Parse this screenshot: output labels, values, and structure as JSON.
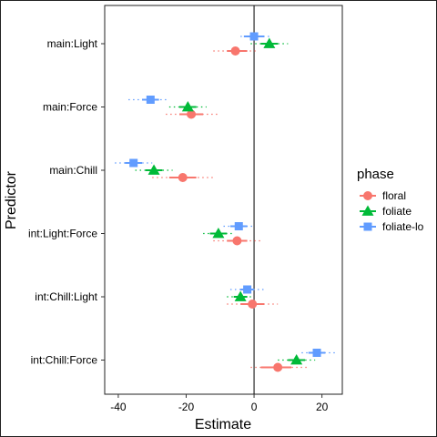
{
  "chart_data": {
    "type": "scatter",
    "subtype": "coefficient-plot-with-error-bars",
    "xlabel": "Estimate",
    "ylabel": "Predictor",
    "xlim": [
      -44,
      26
    ],
    "x_ticks": [
      -40,
      -20,
      0,
      20
    ],
    "x_tick_labels": [
      "-40",
      "-20",
      "0",
      "20"
    ],
    "reference_line_x": 0,
    "grid": false,
    "legend_title": "phase",
    "legend_position": "right",
    "categories": [
      "main:Light",
      "main:Force",
      "main:Chill",
      "int:Light:Force",
      "int:Chill:Light",
      "int:Chill:Force"
    ],
    "series": [
      {
        "name": "floral",
        "color": "#F8766D",
        "marker": "circle",
        "values": [
          -5.5,
          -18.5,
          -21,
          -5,
          -0.5,
          7
        ],
        "inner_interval": [
          [
            -8,
            -2
          ],
          [
            -22,
            -15
          ],
          [
            -25,
            -17
          ],
          [
            -8,
            -2
          ],
          [
            -4,
            3
          ],
          [
            2,
            11
          ]
        ],
        "outer_interval": [
          [
            -12,
            1
          ],
          [
            -26,
            -10
          ],
          [
            -30,
            -12
          ],
          [
            -12,
            2
          ],
          [
            -8,
            7
          ],
          [
            -1,
            16
          ]
        ]
      },
      {
        "name": "foliate",
        "color": "#00BA38",
        "marker": "triangle",
        "values": [
          4.5,
          -19.5,
          -29.5,
          -10.5,
          -4,
          12.5
        ],
        "inner_interval": [
          [
            2,
            7
          ],
          [
            -22,
            -17
          ],
          [
            -32,
            -27
          ],
          [
            -13,
            -8
          ],
          [
            -6,
            -2
          ],
          [
            10,
            15
          ]
        ],
        "outer_interval": [
          [
            -1,
            10
          ],
          [
            -25,
            -14
          ],
          [
            -35,
            -24
          ],
          [
            -15,
            -6
          ],
          [
            -8,
            0
          ],
          [
            7,
            18
          ]
        ]
      },
      {
        "name": "foliate-lo",
        "color": "#619CFF",
        "marker": "square",
        "values": [
          0,
          -30.5,
          -35.5,
          -4.5,
          -2,
          18.5
        ],
        "inner_interval": [
          [
            -3,
            3
          ],
          [
            -33,
            -28
          ],
          [
            -38,
            -33
          ],
          [
            -7,
            -2
          ],
          [
            -4,
            0
          ],
          [
            16,
            21
          ]
        ],
        "outer_interval": [
          [
            -4,
            5
          ],
          [
            -37,
            -25
          ],
          [
            -41,
            -30
          ],
          [
            -9,
            0
          ],
          [
            -7,
            3
          ],
          [
            14,
            24
          ]
        ]
      }
    ]
  }
}
